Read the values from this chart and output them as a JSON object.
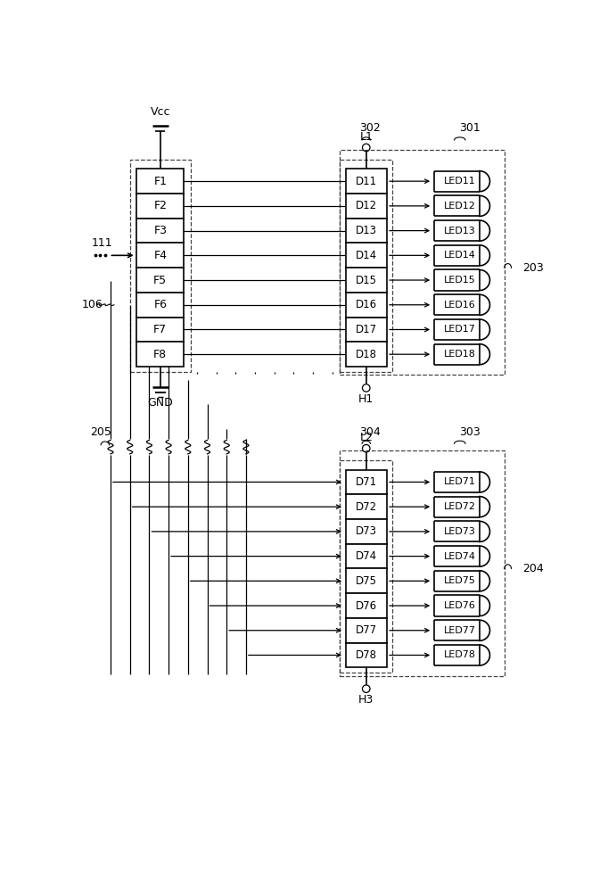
{
  "bg_color": "#ffffff",
  "figsize": [
    6.82,
    10.0
  ],
  "dpi": 100,
  "top": {
    "F_labels": [
      "F1",
      "F2",
      "F3",
      "F4",
      "F5",
      "F6",
      "F7",
      "F8"
    ],
    "D_labels": [
      "D11",
      "D12",
      "D13",
      "D14",
      "D15",
      "D16",
      "D17",
      "D18"
    ],
    "LED_labels": [
      "LED11",
      "LED12",
      "LED13",
      "LED14",
      "LED15",
      "LED16",
      "LED17",
      "LED18"
    ],
    "vcc": "Vcc",
    "gnd": "GND",
    "L": "L1",
    "H": "H1",
    "ref_D": "302",
    "ref_outer": "301",
    "ref_sect": "203",
    "ref_111": "111",
    "ref_106": "106"
  },
  "bot": {
    "D_labels": [
      "D71",
      "D72",
      "D73",
      "D74",
      "D75",
      "D76",
      "D77",
      "D78"
    ],
    "LED_labels": [
      "LED71",
      "LED72",
      "LED73",
      "LED74",
      "LED75",
      "LED76",
      "LED77",
      "LED78"
    ],
    "L": "L2",
    "H": "H3",
    "ref_D": "304",
    "ref_outer": "303",
    "ref_sect": "204",
    "ref_wire": "205"
  }
}
